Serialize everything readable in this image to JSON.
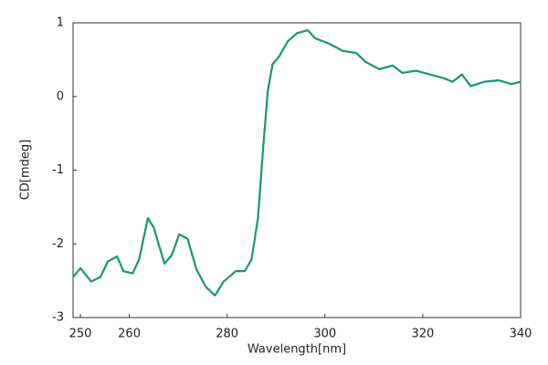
{
  "chart_data": {
    "type": "line",
    "xlabel": "Wavelength[nm]",
    "ylabel": "CD[mdeg]",
    "x": [
      248.5,
      250,
      252.2,
      254.1,
      255.6,
      257.5,
      258.8,
      260.7,
      262,
      263.8,
      265,
      267.2,
      268.7,
      270.2,
      271.9,
      273.7,
      275.6,
      277.5,
      279.3,
      281.8,
      283.6,
      285,
      286.3,
      287.4,
      288.3,
      289.3,
      290.6,
      292.4,
      294.3,
      296.5,
      298,
      300.8,
      303.6,
      306.4,
      308.3,
      311.1,
      313.9,
      315.8,
      318.6,
      321.4,
      324.2,
      326.1,
      328,
      329.8,
      332.6,
      335.4,
      338.2,
      340
    ],
    "series": [
      {
        "color": "#16996b",
        "values": [
          -2.45,
          -2.33,
          -2.51,
          -2.45,
          -2.24,
          -2.17,
          -2.37,
          -2.4,
          -2.21,
          -1.65,
          -1.78,
          -2.27,
          -2.15,
          -1.87,
          -1.93,
          -2.34,
          -2.58,
          -2.7,
          -2.51,
          -2.37,
          -2.37,
          -2.21,
          -1.65,
          -0.67,
          0.07,
          0.44,
          0.54,
          0.75,
          0.86,
          0.9,
          0.79,
          0.72,
          0.62,
          0.59,
          0.47,
          0.37,
          0.42,
          0.32,
          0.35,
          0.3,
          0.25,
          0.2,
          0.3,
          0.14,
          0.2,
          0.22,
          0.17,
          0.2
        ]
      }
    ],
    "xlim": [
      248.5,
      340
    ],
    "xticks": [
      250,
      260,
      280,
      300,
      320,
      340
    ],
    "ylim": [
      -3,
      1
    ],
    "yticks": [
      1,
      0,
      -1,
      -2,
      -3
    ]
  }
}
